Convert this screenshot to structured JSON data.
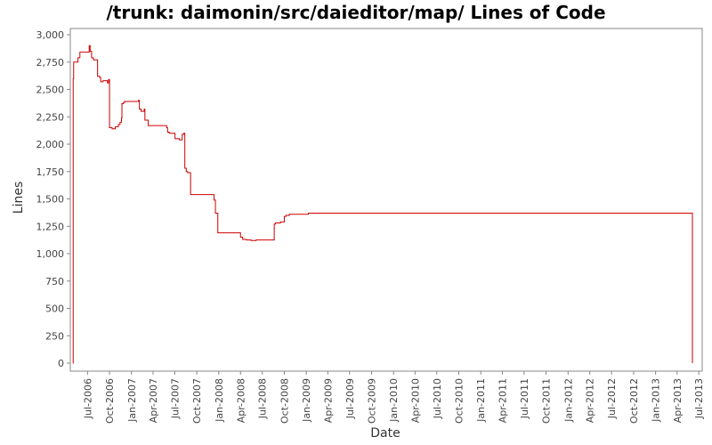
{
  "chart_data": {
    "type": "line",
    "title": "/trunk: daimonin/src/daieditor/map/ Lines of Code",
    "xlabel": "Date",
    "ylabel": "Lines",
    "ylim": [
      0,
      3000
    ],
    "xlim": [
      "2006-04-20",
      "2013-07-15"
    ],
    "grid": false,
    "legend": "none",
    "series_color": "#cc0000",
    "y_ticks": [
      0,
      250,
      500,
      750,
      1000,
      1250,
      1500,
      1750,
      2000,
      2250,
      2500,
      2750,
      3000
    ],
    "y_tick_labels": [
      "0",
      "250",
      "500",
      "750",
      "1,000",
      "1,250",
      "1,500",
      "1,750",
      "2,000",
      "2,250",
      "2,500",
      "2,750",
      "3,000"
    ],
    "x_ticks": [
      "2006-07-01",
      "2006-10-01",
      "2007-01-01",
      "2007-04-01",
      "2007-07-01",
      "2007-10-01",
      "2008-01-01",
      "2008-04-01",
      "2008-07-01",
      "2008-10-01",
      "2009-01-01",
      "2009-04-01",
      "2009-07-01",
      "2009-10-01",
      "2010-01-01",
      "2010-04-01",
      "2010-07-01",
      "2010-10-01",
      "2011-01-01",
      "2011-04-01",
      "2011-07-01",
      "2011-10-01",
      "2012-01-01",
      "2012-04-01",
      "2012-07-01",
      "2012-10-01",
      "2013-01-01",
      "2013-04-01",
      "2013-07-01"
    ],
    "x_tick_labels": [
      "Jul-2006",
      "Oct-2006",
      "Jan-2007",
      "Apr-2007",
      "Jul-2007",
      "Oct-2007",
      "Jan-2008",
      "Apr-2008",
      "Jul-2008",
      "Oct-2008",
      "Jan-2009",
      "Apr-2009",
      "Jul-2009",
      "Oct-2009",
      "Jan-2010",
      "Apr-2010",
      "Jul-2010",
      "Oct-2010",
      "Jan-2011",
      "Apr-2011",
      "Jul-2011",
      "Oct-2011",
      "Jan-2012",
      "Apr-2012",
      "Jul-2012",
      "Oct-2012",
      "Jan-2013",
      "Apr-2013",
      "Jul-2013"
    ],
    "series": [
      {
        "step": true,
        "points": [
          [
            "2006-05-01",
            0
          ],
          [
            "2006-05-02",
            2600
          ],
          [
            "2006-05-04",
            2750
          ],
          [
            "2006-05-22",
            2790
          ],
          [
            "2006-05-30",
            2840
          ],
          [
            "2006-07-08",
            2900
          ],
          [
            "2006-07-12",
            2850
          ],
          [
            "2006-07-18",
            2790
          ],
          [
            "2006-07-26",
            2770
          ],
          [
            "2006-08-12",
            2620
          ],
          [
            "2006-08-21",
            2610
          ],
          [
            "2006-08-25",
            2570
          ],
          [
            "2006-09-04",
            2580
          ],
          [
            "2006-09-22",
            2560
          ],
          [
            "2006-09-27",
            2590
          ],
          [
            "2006-10-01",
            2150
          ],
          [
            "2006-10-12",
            2140
          ],
          [
            "2006-10-25",
            2160
          ],
          [
            "2006-11-07",
            2180
          ],
          [
            "2006-11-14",
            2200
          ],
          [
            "2006-11-20",
            2240
          ],
          [
            "2006-11-22",
            2370
          ],
          [
            "2006-11-28",
            2380
          ],
          [
            "2006-12-03",
            2390
          ],
          [
            "2006-12-15",
            2390
          ],
          [
            "2007-01-30",
            2400
          ],
          [
            "2007-02-03",
            2320
          ],
          [
            "2007-02-10",
            2300
          ],
          [
            "2007-02-23",
            2320
          ],
          [
            "2007-02-26",
            2220
          ],
          [
            "2007-03-12",
            2170
          ],
          [
            "2007-05-28",
            2150
          ],
          [
            "2007-06-01",
            2110
          ],
          [
            "2007-06-08",
            2100
          ],
          [
            "2007-07-02",
            2050
          ],
          [
            "2007-07-20",
            2040
          ],
          [
            "2007-08-01",
            2090
          ],
          [
            "2007-08-08",
            2100
          ],
          [
            "2007-08-12",
            1780
          ],
          [
            "2007-08-18",
            1750
          ],
          [
            "2007-08-24",
            1740
          ],
          [
            "2007-09-05",
            1540
          ],
          [
            "2007-12-12",
            1490
          ],
          [
            "2007-12-18",
            1370
          ],
          [
            "2007-12-28",
            1190
          ],
          [
            "2008-04-01",
            1150
          ],
          [
            "2008-04-10",
            1130
          ],
          [
            "2008-04-25",
            1125
          ],
          [
            "2008-05-15",
            1120
          ],
          [
            "2008-06-05",
            1125
          ],
          [
            "2008-08-20",
            1270
          ],
          [
            "2008-08-25",
            1280
          ],
          [
            "2008-09-15",
            1290
          ],
          [
            "2008-10-01",
            1340
          ],
          [
            "2008-10-08",
            1350
          ],
          [
            "2008-10-22",
            1360
          ],
          [
            "2009-01-10",
            1370
          ],
          [
            "2013-06-03",
            1370
          ],
          [
            "2013-06-04",
            0
          ]
        ]
      }
    ]
  }
}
